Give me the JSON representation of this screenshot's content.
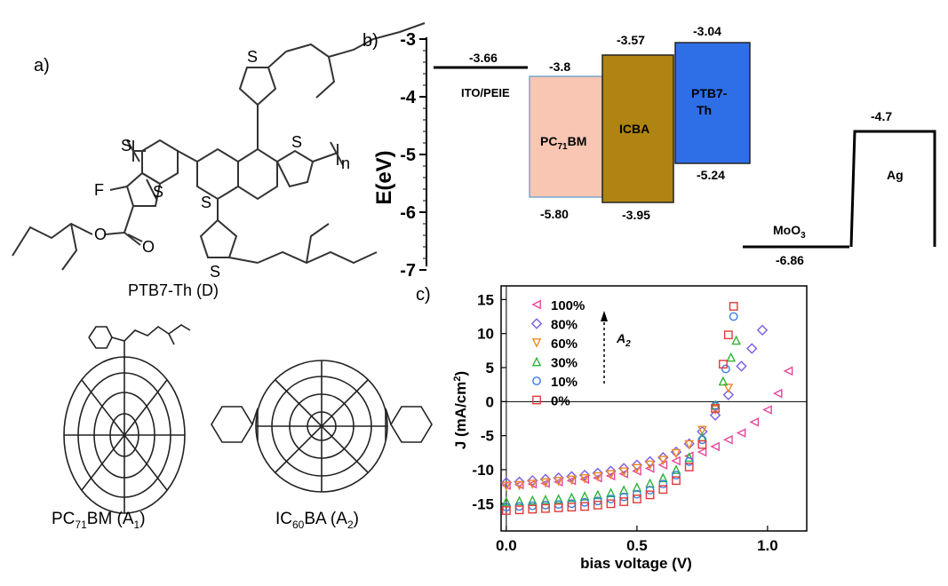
{
  "panel_a": {
    "letter": "a)",
    "polymer": {
      "caption": "PTB7-Th (D)",
      "atom_F": "F",
      "atom_S": "S",
      "atom_O": "O",
      "repeat_n": "n"
    },
    "pcbm": {
      "caption_main": "PC",
      "caption_sub": "71",
      "caption_rest": "BM (A",
      "caption_sub2": "1",
      "caption_end": ")"
    },
    "icba": {
      "caption_main": "IC",
      "caption_sub": "60",
      "caption_rest": "BA (A",
      "caption_sub2": "2",
      "caption_end": ")"
    }
  },
  "panel_b": {
    "letter": "b)",
    "ylabel": "E(eV)",
    "yticks": [
      "-3",
      "-4",
      "-5",
      "-6",
      "-7"
    ],
    "levels": {
      "ito": {
        "name": "ITO/PEIE",
        "value": "-3.66"
      },
      "pcbm": {
        "name_main": "PC",
        "name_sub": "71",
        "name_rest": "BM",
        "lumo": "-3.8",
        "homo": "-5.80",
        "color": "#f9c6b3"
      },
      "icba": {
        "name": "ICBA",
        "lumo": "-3.57",
        "homo": "-3.95",
        "color": "#b08412"
      },
      "ptb7": {
        "name1": "PTB7-",
        "name2": "Th",
        "lumo": "-3.04",
        "homo": "-5.24",
        "color": "#2e6fe8"
      },
      "moo3": {
        "name_main": "MoO",
        "name_sub": "3",
        "value": "-6.86"
      },
      "ag": {
        "name": "Ag",
        "value": "-4.7"
      }
    }
  },
  "panel_c": {
    "letter": "c)",
    "annotation": {
      "main": "A",
      "sub": "2"
    }
  },
  "chart_data": {
    "type": "scatter",
    "xlabel": "bias voltage (V)",
    "ylabel_main": "J (mA/cm",
    "ylabel_sup": "2",
    "ylabel_end": ")",
    "xlim": [
      -0.02,
      1.15
    ],
    "ylim": [
      -19,
      17
    ],
    "xticks": [
      "0.0",
      "0.5",
      "1.0"
    ],
    "yticks": [
      "15",
      "10",
      "5",
      "0",
      "-5",
      "-10",
      "-15"
    ],
    "legend_position": "top-left",
    "series": [
      {
        "name": "100%",
        "color": "#e8469c",
        "marker": "triangle-left",
        "x": [
          0.0,
          0.05,
          0.1,
          0.15,
          0.2,
          0.25,
          0.3,
          0.35,
          0.4,
          0.45,
          0.5,
          0.55,
          0.6,
          0.65,
          0.7,
          0.75,
          0.8,
          0.85,
          0.9,
          0.95,
          1.0,
          1.04,
          1.08
        ],
        "y": [
          -12.3,
          -12.2,
          -12.1,
          -12.0,
          -11.8,
          -11.6,
          -11.4,
          -11.2,
          -10.9,
          -10.6,
          -10.2,
          -9.8,
          -9.3,
          -8.7,
          -8.0,
          -7.4,
          -6.6,
          -5.6,
          -4.6,
          -3.0,
          -1.2,
          1.2,
          4.5
        ]
      },
      {
        "name": "80%",
        "color": "#7b5ce6",
        "marker": "diamond",
        "x": [
          0.0,
          0.05,
          0.1,
          0.15,
          0.2,
          0.25,
          0.3,
          0.35,
          0.4,
          0.45,
          0.5,
          0.55,
          0.6,
          0.65,
          0.7,
          0.75,
          0.8,
          0.85,
          0.9,
          0.94,
          0.98
        ],
        "y": [
          -11.9,
          -11.8,
          -11.6,
          -11.4,
          -11.2,
          -11.0,
          -10.8,
          -10.5,
          -10.2,
          -9.8,
          -9.3,
          -8.8,
          -8.2,
          -7.4,
          -6.2,
          -4.4,
          -2.0,
          1.0,
          5.2,
          7.8,
          10.5
        ]
      },
      {
        "name": "60%",
        "color": "#f08a24",
        "marker": "triangle-down",
        "x": [
          0.0,
          0.05,
          0.1,
          0.15,
          0.2,
          0.25,
          0.3,
          0.35,
          0.4,
          0.45,
          0.5,
          0.55,
          0.6,
          0.65,
          0.7,
          0.75,
          0.8,
          0.85
        ],
        "y": [
          -12.4,
          -12.3,
          -12.1,
          -11.9,
          -11.7,
          -11.5,
          -11.3,
          -11.0,
          -10.7,
          -10.3,
          -9.8,
          -9.3,
          -8.6,
          -7.6,
          -6.3,
          -4.2,
          -1.2,
          2.0
        ]
      },
      {
        "name": "30%",
        "color": "#2fb33a",
        "marker": "triangle-up",
        "x": [
          0.0,
          0.05,
          0.1,
          0.15,
          0.2,
          0.25,
          0.3,
          0.35,
          0.4,
          0.45,
          0.5,
          0.55,
          0.6,
          0.65,
          0.7,
          0.75,
          0.8,
          0.83,
          0.86,
          0.88
        ],
        "y": [
          -14.7,
          -14.6,
          -14.5,
          -14.4,
          -14.3,
          -14.1,
          -13.9,
          -13.7,
          -13.4,
          -13.0,
          -12.6,
          -12.0,
          -11.2,
          -10.0,
          -8.2,
          -5.2,
          -0.5,
          3.0,
          6.5,
          9.0
        ]
      },
      {
        "name": "10%",
        "color": "#3a7de0",
        "marker": "circle",
        "x": [
          0.0,
          0.05,
          0.1,
          0.15,
          0.2,
          0.25,
          0.3,
          0.35,
          0.4,
          0.45,
          0.5,
          0.55,
          0.6,
          0.65,
          0.7,
          0.75,
          0.8,
          0.84,
          0.87
        ],
        "y": [
          -15.5,
          -15.4,
          -15.3,
          -15.2,
          -15.1,
          -15.0,
          -14.8,
          -14.6,
          -14.3,
          -14.0,
          -13.6,
          -13.0,
          -12.1,
          -10.8,
          -8.8,
          -5.6,
          -0.6,
          4.8,
          12.5
        ]
      },
      {
        "name": "0%",
        "color": "#e23a3a",
        "marker": "square",
        "x": [
          0.0,
          0.05,
          0.1,
          0.15,
          0.2,
          0.25,
          0.3,
          0.35,
          0.4,
          0.45,
          0.5,
          0.55,
          0.6,
          0.65,
          0.7,
          0.75,
          0.8,
          0.83,
          0.85,
          0.87
        ],
        "y": [
          -16.0,
          -15.9,
          -15.8,
          -15.7,
          -15.6,
          -15.5,
          -15.4,
          -15.2,
          -15.0,
          -14.7,
          -14.3,
          -13.7,
          -12.9,
          -11.6,
          -9.6,
          -6.3,
          -1.0,
          5.5,
          9.8,
          14.0
        ]
      }
    ]
  }
}
